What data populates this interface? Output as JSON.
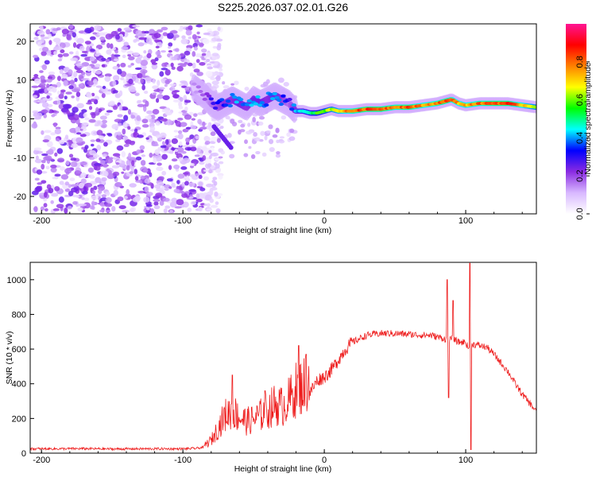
{
  "title": "S225.2026.037.02.01.G26",
  "chart_data": [
    {
      "type": "heatmap",
      "name": "spectrogram",
      "xlabel": "Height of straight line (km)",
      "ylabel": "Frequency (Hz)",
      "xlim": [
        -208,
        150
      ],
      "ylim": [
        -24.5,
        24.5
      ],
      "xticks": [
        -200,
        -100,
        0,
        100
      ],
      "xtick_labels": [
        "-200",
        "-100",
        "0",
        "100"
      ],
      "yticks": [
        -20,
        -10,
        0,
        10,
        20
      ],
      "ytick_labels": [
        "-20",
        "-10",
        "0",
        "10",
        "20"
      ],
      "colorbar": {
        "label": "Normalized spectral amplitude",
        "range": [
          0,
          1
        ],
        "ticks": [
          0.0,
          0.2,
          0.4,
          0.6,
          0.8
        ],
        "tick_labels": [
          "0.0",
          "0.2",
          "0.4",
          "0.6",
          "0.8"
        ],
        "colors": [
          "#ffffff",
          "#d8b8ff",
          "#8a2be2",
          "#0000ff",
          "#00ffff",
          "#00ff00",
          "#ffff00",
          "#ff8000",
          "#ff0000",
          "#ff1493"
        ]
      },
      "noise_region": {
        "x": [
          -205,
          -85
        ],
        "y": [
          -24,
          24
        ]
      },
      "ridge": {
        "x": [
          -92,
          -85,
          -80,
          -75,
          -70,
          -65,
          -60,
          -55,
          -50,
          -45,
          -40,
          -35,
          -30,
          -25,
          -20,
          -15,
          -10,
          -5,
          0,
          5,
          10,
          20,
          30,
          40,
          50,
          60,
          70,
          80,
          85,
          90,
          95,
          100,
          110,
          120,
          130,
          140,
          150
        ],
        "y": [
          8,
          6,
          4,
          3,
          4,
          5,
          4,
          3,
          5,
          4,
          5,
          6,
          5,
          4,
          2,
          2,
          1.5,
          1.5,
          2,
          2.5,
          2,
          2,
          2.5,
          2.5,
          3,
          3,
          3.5,
          4,
          4.5,
          5,
          4,
          3.5,
          4,
          4,
          4,
          3.5,
          3
        ],
        "amplitude": [
          0.15,
          0.2,
          0.3,
          0.35,
          0.4,
          0.4,
          0.45,
          0.4,
          0.45,
          0.45,
          0.4,
          0.45,
          0.4,
          0.3,
          0.45,
          0.5,
          0.55,
          0.6,
          0.65,
          0.7,
          0.75,
          0.85,
          0.9,
          0.9,
          0.85,
          0.9,
          0.8,
          0.85,
          0.9,
          0.85,
          0.8,
          0.8,
          0.85,
          0.9,
          0.9,
          0.8,
          0.7
        ]
      }
    },
    {
      "type": "line",
      "name": "snr",
      "xlabel": "Height of straight line (km)",
      "ylabel": "SNR (10 * v/v)",
      "xlim": [
        -208,
        150
      ],
      "ylim": [
        0,
        1100
      ],
      "xticks": [
        -200,
        -100,
        0,
        100
      ],
      "xtick_labels": [
        "-200",
        "-100",
        "0",
        "100"
      ],
      "yticks": [
        0,
        200,
        400,
        600,
        800,
        1000
      ],
      "ytick_labels": [
        "0",
        "200",
        "400",
        "600",
        "800",
        "1000"
      ],
      "color": "#ee1c1c",
      "series": [
        {
          "name": "SNR",
          "x": [
            -208,
            -190,
            -170,
            -150,
            -130,
            -110,
            -100,
            -95,
            -90,
            -85,
            -80,
            -75,
            -70,
            -65,
            -60,
            -55,
            -50,
            -45,
            -40,
            -35,
            -30,
            -25,
            -20,
            -15,
            -10,
            -5,
            0,
            5,
            10,
            15,
            20,
            25,
            30,
            40,
            50,
            60,
            70,
            75,
            80,
            85,
            88,
            90,
            95,
            100,
            102,
            103,
            104,
            110,
            115,
            120,
            125,
            130,
            135,
            140,
            145,
            150
          ],
          "y": [
            25,
            25,
            26,
            24,
            25,
            25,
            25,
            26,
            28,
            35,
            60,
            120,
            180,
            200,
            170,
            150,
            160,
            180,
            200,
            230,
            220,
            250,
            300,
            320,
            350,
            420,
            440,
            480,
            540,
            600,
            640,
            660,
            680,
            690,
            690,
            685,
            680,
            680,
            670,
            660,
            650,
            660,
            640,
            640,
            600,
            640,
            630,
            620,
            610,
            570,
            520,
            470,
            400,
            340,
            290,
            240
          ],
          "spikes": [
            {
              "x": -65,
              "y": 450
            },
            {
              "x": -42,
              "y": 360
            },
            {
              "x": -18,
              "y": 620
            },
            {
              "x": -13,
              "y": 570
            },
            {
              "x": 87,
              "y": 1000
            },
            {
              "x": 88,
              "y": 320
            },
            {
              "x": 91,
              "y": 880
            },
            {
              "x": 103,
              "y": 1095
            },
            {
              "x": 103.5,
              "y": 20
            }
          ]
        }
      ]
    }
  ]
}
